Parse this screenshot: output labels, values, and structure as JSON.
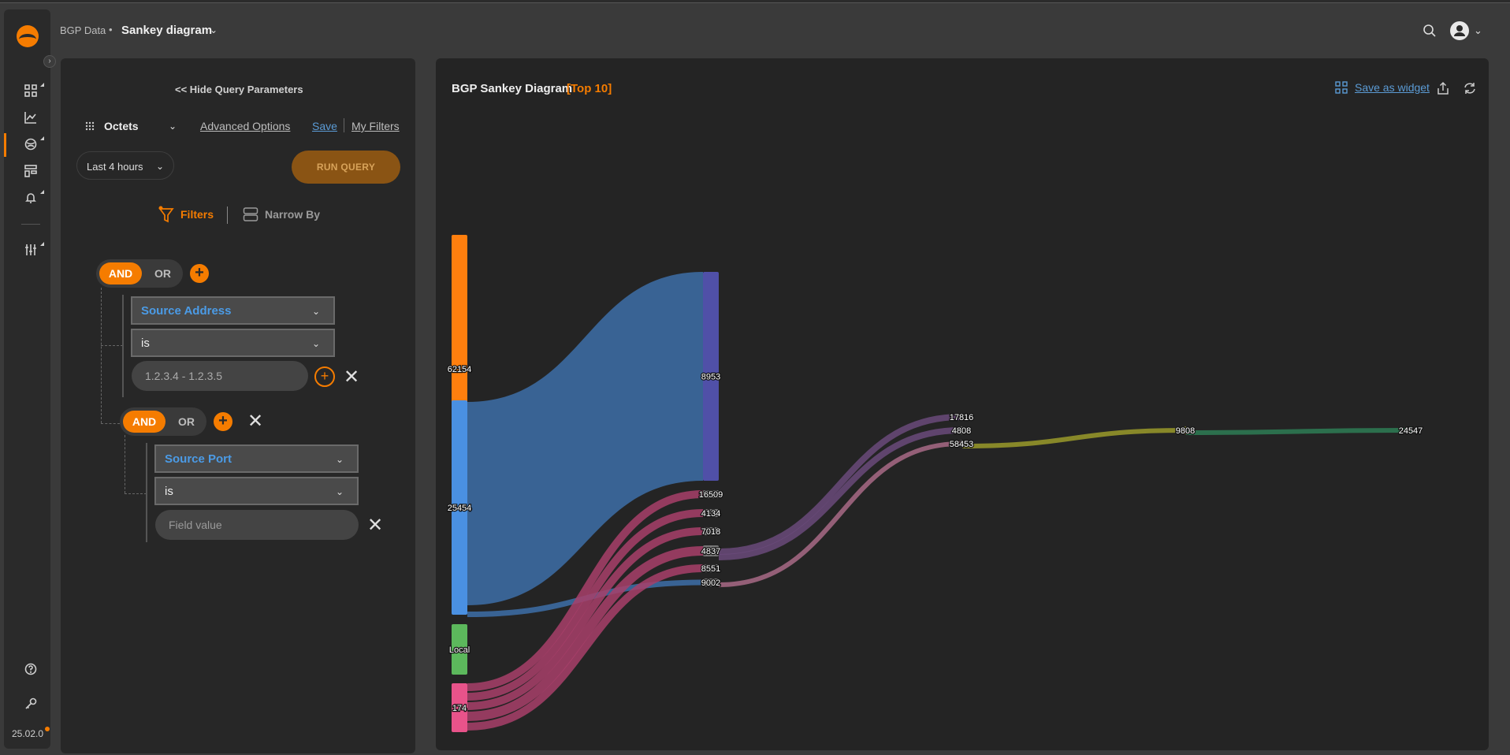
{
  "app": {
    "version": "25.02.0"
  },
  "breadcrumb": {
    "root": "BGP Data",
    "separator": "•",
    "page": "Sankey diagram"
  },
  "query_panel": {
    "hide_label": "Hide Query Parameters",
    "metric": "Octets",
    "advanced_options": "Advanced Options",
    "save": "Save",
    "my_filters": "My Filters",
    "time_range": "Last 4 hours",
    "run_query": "RUN QUERY",
    "tabs": {
      "filters": "Filters",
      "narrow_by": "Narrow By"
    },
    "filter_tree": {
      "group1": {
        "logic_and": "AND",
        "logic_or": "OR",
        "rule": {
          "field": "Source Address",
          "operator": "is",
          "value": "1.2.3.4 - 1.2.3.5"
        }
      },
      "group2": {
        "logic_and": "AND",
        "logic_or": "OR",
        "rule": {
          "field": "Source Port",
          "operator": "is",
          "placeholder": "Field value"
        }
      }
    }
  },
  "chart": {
    "title": "BGP Sankey Diagram",
    "subtitle": "[Top 10]",
    "save_widget": "Save as widget"
  },
  "chart_data": {
    "type": "sankey",
    "columns": [
      [
        "62154",
        "25454",
        "Local",
        "174"
      ],
      [
        "8953",
        "16509",
        "4134",
        "7018",
        "4837",
        "8551",
        "9002"
      ],
      [
        "17816",
        "4808",
        "58453"
      ],
      [
        "9808"
      ],
      [
        "24547"
      ]
    ],
    "node_colors": {
      "62154": "#ff7f0e",
      "25454": "#4a90e2",
      "Local": "#5cb85c",
      "174": "#e8538a",
      "8953": "#5050a8",
      "9808": "#8a8a2a",
      "24547": "#2e7d55"
    },
    "links": [
      {
        "source": "25454",
        "target": "8953"
      },
      {
        "source": "25454",
        "target": "9002"
      },
      {
        "source": "174",
        "target": "16509"
      },
      {
        "source": "174",
        "target": "4134"
      },
      {
        "source": "174",
        "target": "7018"
      },
      {
        "source": "174",
        "target": "4837"
      },
      {
        "source": "174",
        "target": "8551"
      },
      {
        "source": "4837",
        "target": "17816"
      },
      {
        "source": "4837",
        "target": "4808"
      },
      {
        "source": "9002",
        "target": "58453"
      },
      {
        "source": "58453",
        "target": "9808"
      },
      {
        "source": "9808",
        "target": "24547"
      }
    ]
  }
}
